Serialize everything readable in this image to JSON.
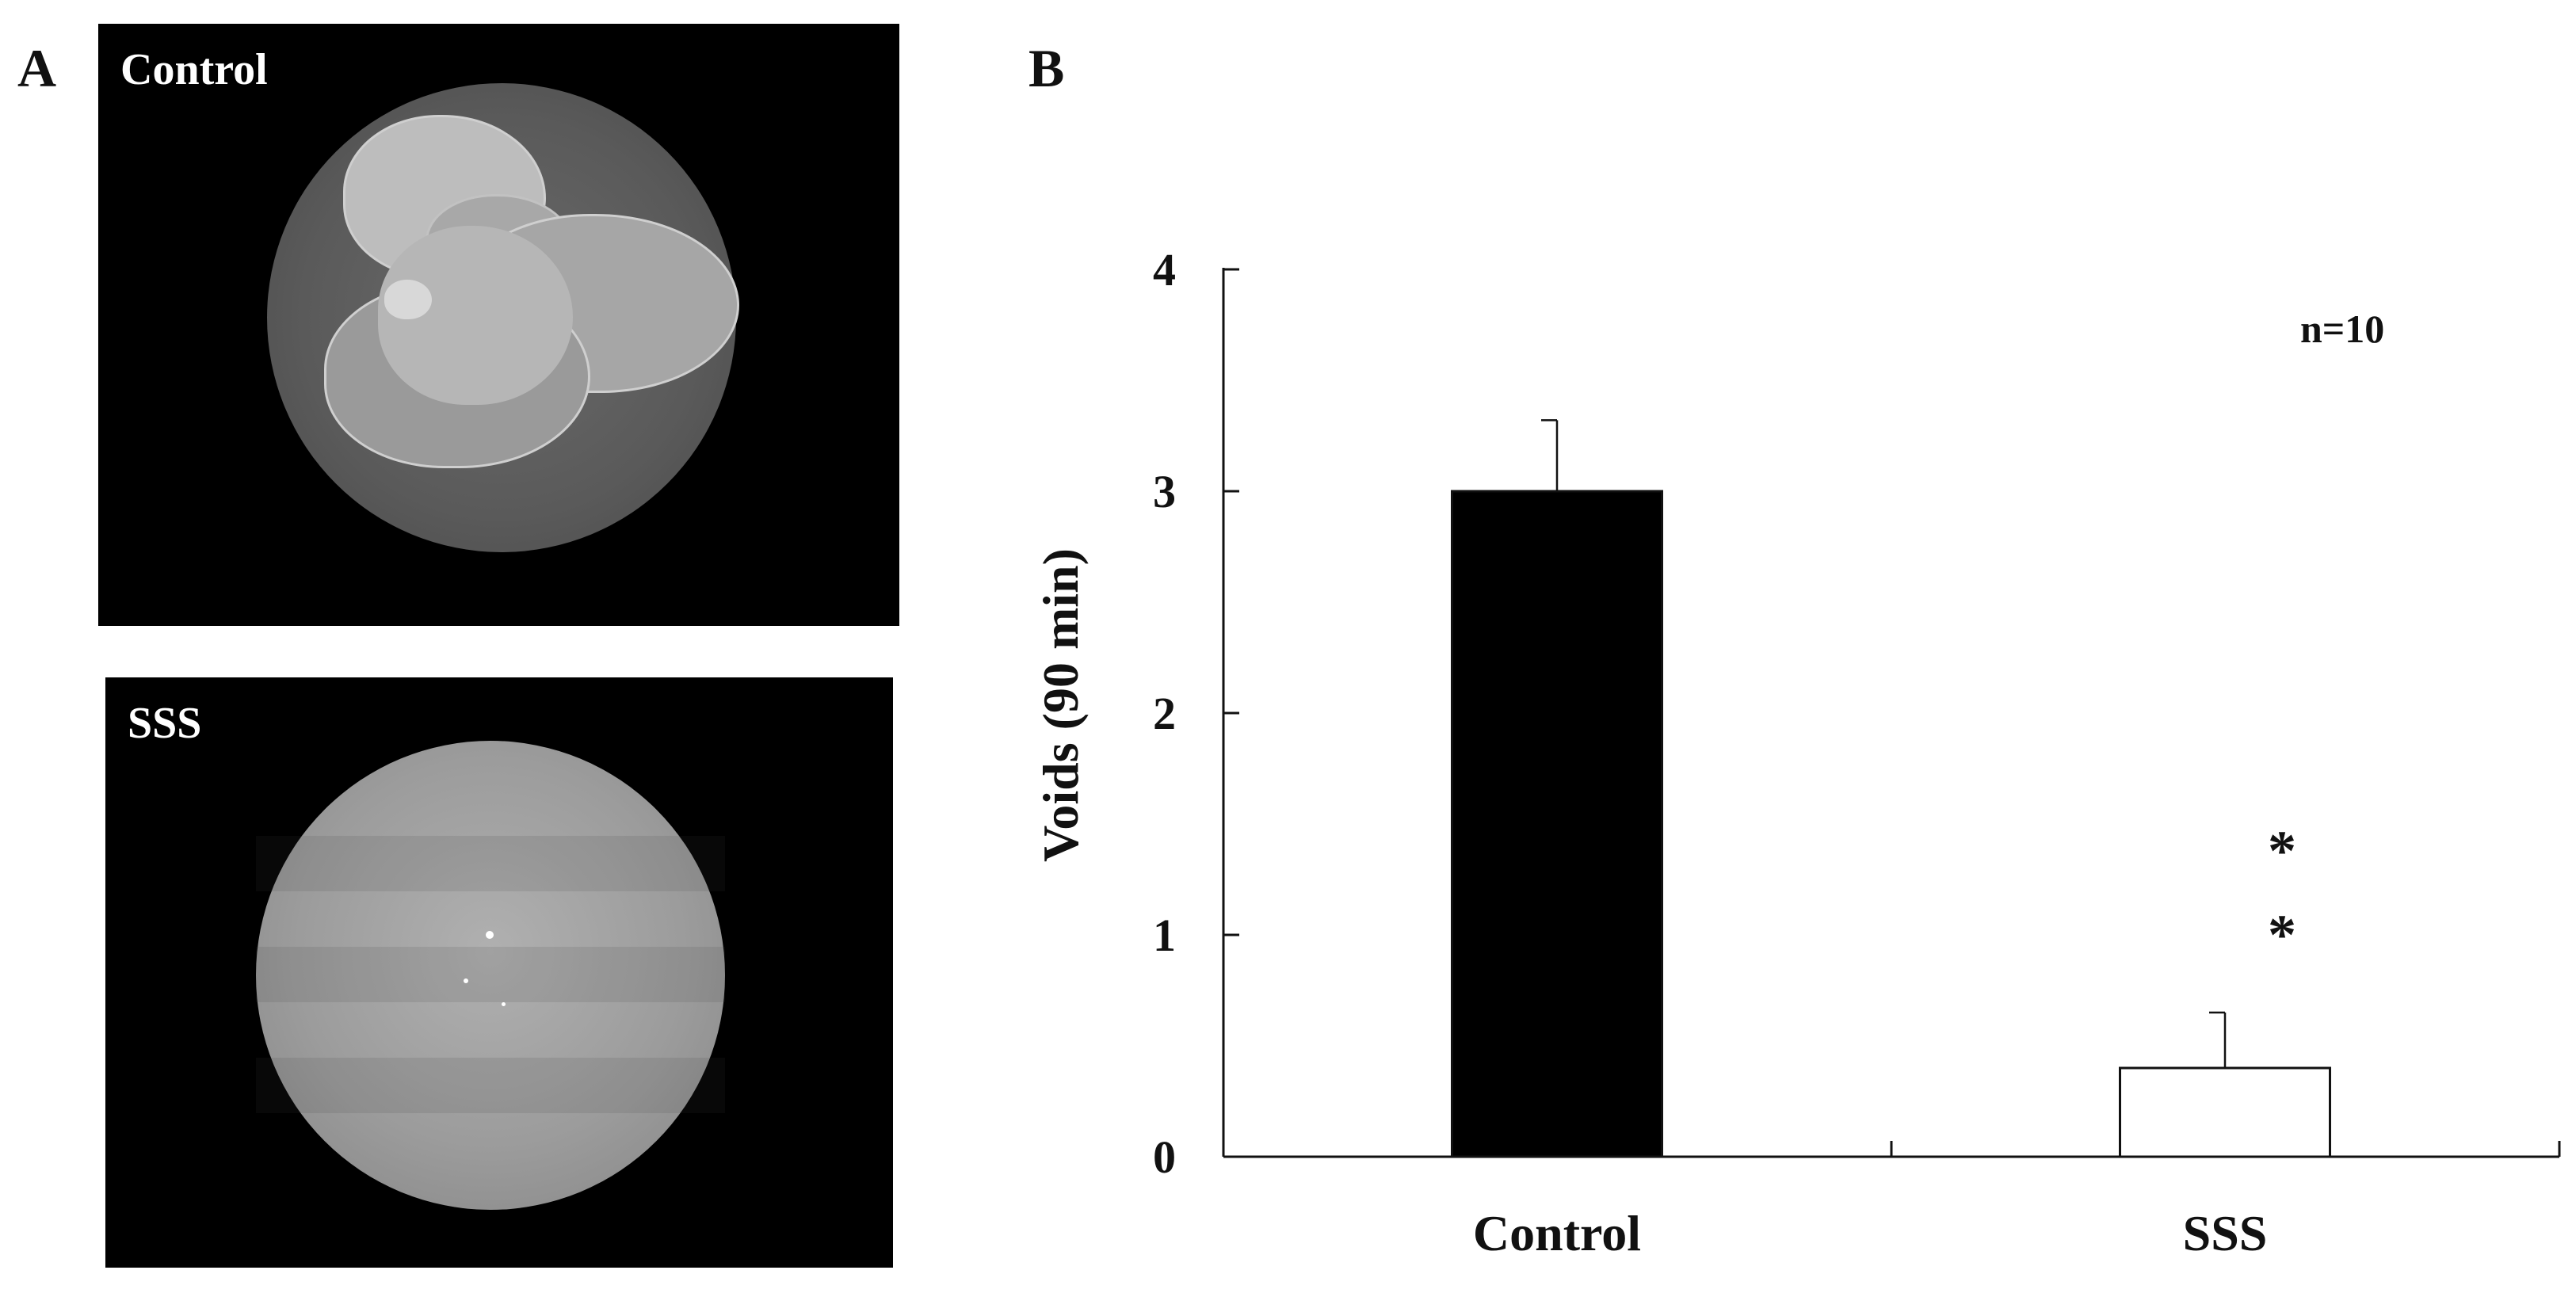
{
  "panels": {
    "a_letter": "A",
    "b_letter": "B",
    "control_label": "Control",
    "sss_label": "SSS"
  },
  "chart_data": {
    "type": "bar",
    "categories": [
      "Control",
      "SSS"
    ],
    "values": [
      3.0,
      0.4
    ],
    "errors": [
      0.32,
      0.25
    ],
    "title": "",
    "xlabel": "",
    "ylabel": "Voids (90 min)",
    "ylim": [
      0,
      4
    ],
    "yticks": [
      0,
      1,
      2,
      3,
      4
    ],
    "grid": false,
    "legend": "none",
    "annotation": "n=10",
    "significance": [
      "",
      "*\n*"
    ],
    "bar_colors": [
      "#000000",
      "#ffffff"
    ]
  }
}
